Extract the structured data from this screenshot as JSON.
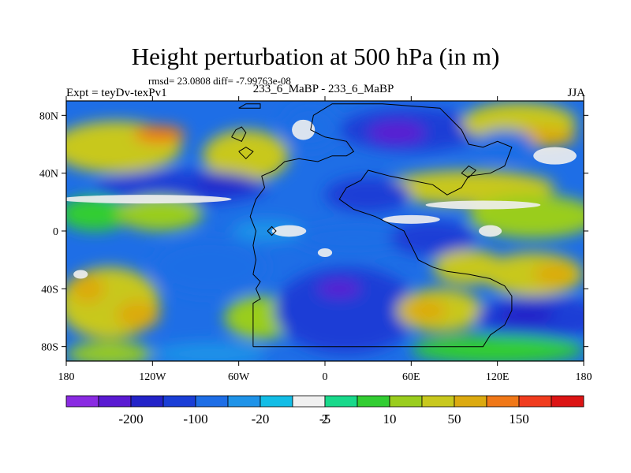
{
  "header": {
    "title": "Height perturbation at 500 hPa (in m)",
    "stats": "rmsd= 23.0808 diff= -7.99763e-08",
    "expt": "Expt = teyDv-texPv1",
    "subtitle": "233_6_MaBP - 233_6_MaBP",
    "season": "JJA"
  },
  "chart_data": {
    "type": "heatmap",
    "title": "Height perturbation at 500 hPa (in m)",
    "xlabel": "",
    "ylabel": "",
    "xlim": [
      -180,
      180
    ],
    "ylim": [
      -90,
      90
    ],
    "x_ticks": [
      {
        "value": -180,
        "label": "180"
      },
      {
        "value": -120,
        "label": "120W"
      },
      {
        "value": -60,
        "label": "60W"
      },
      {
        "value": 0,
        "label": "0"
      },
      {
        "value": 60,
        "label": "60E"
      },
      {
        "value": 120,
        "label": "120E"
      },
      {
        "value": 180,
        "label": "180"
      }
    ],
    "y_ticks": [
      {
        "value": 80,
        "label": "80N"
      },
      {
        "value": 40,
        "label": "40N"
      },
      {
        "value": 0,
        "label": "0"
      },
      {
        "value": -40,
        "label": "40S"
      },
      {
        "value": -80,
        "label": "80S"
      }
    ],
    "colorbar": {
      "colors": [
        "#8a2be2",
        "#5a1ad2",
        "#2323c8",
        "#1a3ed6",
        "#1e6ee6",
        "#1f93e8",
        "#13bde6",
        "#f0f0f0",
        "#19d98b",
        "#32cd32",
        "#9acd1e",
        "#c8c81e",
        "#dcaa10",
        "#f07818",
        "#f03c1e",
        "#dc1414"
      ],
      "labels": [
        "-200",
        "-100",
        "-20",
        "-5",
        "2",
        "10",
        "50",
        "150"
      ]
    },
    "blobs": [
      {
        "lon": -145,
        "lat": 58,
        "rlon": 45,
        "rlat": 18,
        "value": 30
      },
      {
        "lon": -115,
        "lat": 67,
        "rlon": 18,
        "rlat": 6,
        "value": 70
      },
      {
        "lon": -55,
        "lat": 52,
        "rlon": 30,
        "rlat": 18,
        "value": 20
      },
      {
        "lon": -10,
        "lat": 72,
        "rlon": 20,
        "rlat": 16,
        "value": -12
      },
      {
        "lon": 60,
        "lat": 70,
        "rlon": 50,
        "rlat": 15,
        "value": -40
      },
      {
        "lon": 50,
        "lat": 68,
        "rlon": 20,
        "rlat": 8,
        "value": -120
      },
      {
        "lon": 135,
        "lat": 75,
        "rlon": 40,
        "rlat": 14,
        "value": 25
      },
      {
        "lon": 150,
        "lat": 65,
        "rlon": 25,
        "rlat": 7,
        "value": 60
      },
      {
        "lon": 125,
        "lat": 60,
        "rlon": 20,
        "rlat": 10,
        "value": -10
      },
      {
        "lon": 100,
        "lat": 30,
        "rlon": 60,
        "rlat": 12,
        "value": 20
      },
      {
        "lon": -100,
        "lat": 30,
        "rlon": 60,
        "rlat": 12,
        "value": -30
      },
      {
        "lon": -70,
        "lat": 33,
        "rlon": 20,
        "rlat": 5,
        "value": -70
      },
      {
        "lon": 30,
        "lat": 25,
        "rlon": 30,
        "rlat": 12,
        "value": -20
      },
      {
        "lon": -160,
        "lat": 12,
        "rlon": 25,
        "rlat": 12,
        "value": 8
      },
      {
        "lon": -115,
        "lat": 12,
        "rlon": 30,
        "rlat": 12,
        "value": 12
      },
      {
        "lon": 145,
        "lat": 10,
        "rlon": 45,
        "rlat": 15,
        "value": 10
      },
      {
        "lon": -40,
        "lat": 0,
        "rlon": 25,
        "rlat": 8,
        "value": -8
      },
      {
        "lon": 20,
        "lat": -5,
        "rlon": 40,
        "rlat": 10,
        "value": -10
      },
      {
        "lon": 75,
        "lat": -5,
        "rlon": 30,
        "rlat": 12,
        "value": -20
      },
      {
        "lon": -80,
        "lat": -25,
        "rlon": 40,
        "rlat": 20,
        "value": -15
      },
      {
        "lon": -150,
        "lat": -50,
        "rlon": 35,
        "rlat": 25,
        "value": 30
      },
      {
        "lon": -165,
        "lat": -40,
        "rlon": 12,
        "rlat": 10,
        "value": 50
      },
      {
        "lon": -130,
        "lat": -58,
        "rlon": 15,
        "rlat": 10,
        "value": 50
      },
      {
        "lon": -45,
        "lat": -60,
        "rlon": 25,
        "rlat": 15,
        "value": 10
      },
      {
        "lon": 15,
        "lat": -55,
        "rlon": 50,
        "rlat": 30,
        "value": -40
      },
      {
        "lon": 10,
        "lat": -40,
        "rlon": 15,
        "rlat": 6,
        "value": -110
      },
      {
        "lon": 80,
        "lat": -55,
        "rlon": 30,
        "rlat": 15,
        "value": 40
      },
      {
        "lon": 70,
        "lat": -55,
        "rlon": 15,
        "rlat": 8,
        "value": 60
      },
      {
        "lon": 100,
        "lat": -25,
        "rlon": 25,
        "rlat": 12,
        "value": 20
      },
      {
        "lon": 145,
        "lat": -30,
        "rlon": 35,
        "rlat": 15,
        "value": 30
      },
      {
        "lon": 160,
        "lat": -30,
        "rlon": 15,
        "rlat": 8,
        "value": 60
      },
      {
        "lon": 150,
        "lat": -60,
        "rlon": 45,
        "rlat": 15,
        "value": -30
      },
      {
        "lon": 140,
        "lat": -58,
        "rlon": 20,
        "rlat": 7,
        "value": -90
      },
      {
        "lon": 120,
        "lat": -82,
        "rlon": 60,
        "rlat": 10,
        "value": 8
      },
      {
        "lon": -150,
        "lat": -85,
        "rlon": 30,
        "rlat": 8,
        "value": 10
      },
      {
        "lon": -80,
        "lat": -85,
        "rlon": 40,
        "rlat": 8,
        "value": -8
      }
    ],
    "white_patches": [
      {
        "lon": -15,
        "lat": 70,
        "rlon": 8,
        "rlat": 7
      },
      {
        "lon": 160,
        "lat": 52,
        "rlon": 15,
        "rlat": 6
      },
      {
        "lon": -25,
        "lat": 0,
        "rlon": 12,
        "rlat": 4
      },
      {
        "lon": 60,
        "lat": 8,
        "rlon": 20,
        "rlat": 3
      },
      {
        "lon": 115,
        "lat": 0,
        "rlon": 8,
        "rlat": 4
      },
      {
        "lon": 0,
        "lat": -15,
        "rlon": 5,
        "rlat": 3
      },
      {
        "lon": -125,
        "lat": 22,
        "rlon": 60,
        "rlat": 3
      },
      {
        "lon": 110,
        "lat": 18,
        "rlon": 40,
        "rlat": 3
      },
      {
        "lon": -170,
        "lat": -30,
        "rlon": 5,
        "rlat": 3
      }
    ],
    "outline": [
      [
        -50,
        -80
      ],
      [
        -50,
        -50
      ],
      [
        -45,
        -47
      ],
      [
        -48,
        -40
      ],
      [
        -45,
        -35
      ],
      [
        -50,
        -30
      ],
      [
        -48,
        -20
      ],
      [
        -50,
        -10
      ],
      [
        -48,
        0
      ],
      [
        -52,
        10
      ],
      [
        -48,
        22
      ],
      [
        -42,
        30
      ],
      [
        -44,
        38
      ],
      [
        -35,
        42
      ],
      [
        -28,
        48
      ],
      [
        -18,
        50
      ],
      [
        -5,
        48
      ],
      [
        5,
        52
      ],
      [
        15,
        52
      ],
      [
        20,
        55
      ],
      [
        15,
        62
      ],
      [
        0,
        65
      ],
      [
        -10,
        70
      ],
      [
        -8,
        80
      ],
      [
        5,
        88
      ],
      [
        40,
        88
      ],
      [
        80,
        85
      ],
      [
        85,
        80
      ],
      [
        90,
        75
      ],
      [
        95,
        70
      ],
      [
        100,
        60
      ],
      [
        110,
        58
      ],
      [
        120,
        62
      ],
      [
        130,
        58
      ],
      [
        125,
        45
      ],
      [
        115,
        40
      ],
      [
        100,
        38
      ],
      [
        95,
        30
      ],
      [
        85,
        25
      ],
      [
        75,
        32
      ],
      [
        60,
        35
      ],
      [
        45,
        38
      ],
      [
        30,
        42
      ],
      [
        25,
        35
      ],
      [
        15,
        30
      ],
      [
        10,
        22
      ],
      [
        20,
        15
      ],
      [
        35,
        10
      ],
      [
        45,
        5
      ],
      [
        55,
        0
      ],
      [
        60,
        -10
      ],
      [
        65,
        -20
      ],
      [
        75,
        -25
      ],
      [
        85,
        -28
      ],
      [
        100,
        -30
      ],
      [
        115,
        -33
      ],
      [
        125,
        -38
      ],
      [
        130,
        -45
      ],
      [
        130,
        -55
      ],
      [
        125,
        -65
      ],
      [
        115,
        -72
      ],
      [
        110,
        -80
      ],
      [
        -50,
        -80
      ]
    ],
    "land_outlines": [
      [
        [
          -60,
          85
        ],
        [
          -55,
          88
        ],
        [
          -45,
          88
        ],
        [
          -45,
          85
        ],
        [
          -60,
          85
        ]
      ],
      [
        [
          -65,
          65
        ],
        [
          -62,
          70
        ],
        [
          -58,
          72
        ],
        [
          -55,
          68
        ],
        [
          -58,
          62
        ],
        [
          -65,
          65
        ]
      ],
      [
        [
          -60,
          55
        ],
        [
          -55,
          58
        ],
        [
          -50,
          55
        ],
        [
          -55,
          50
        ],
        [
          -60,
          55
        ]
      ],
      [
        [
          95,
          40
        ],
        [
          100,
          45
        ],
        [
          105,
          42
        ],
        [
          100,
          37
        ],
        [
          95,
          40
        ]
      ],
      [
        [
          -40,
          0
        ],
        [
          -37,
          3
        ],
        [
          -34,
          0
        ],
        [
          -37,
          -3
        ],
        [
          -40,
          0
        ]
      ]
    ]
  }
}
